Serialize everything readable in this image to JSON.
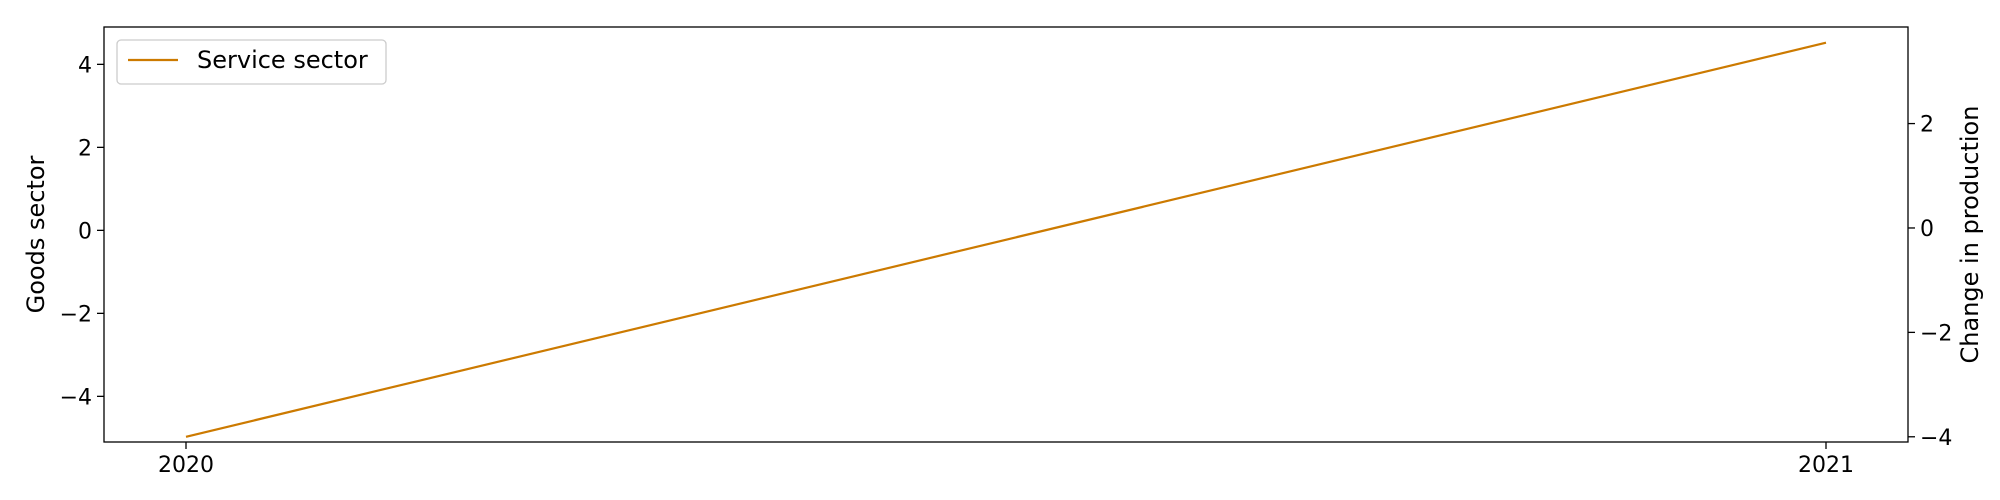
{
  "chart_data": {
    "type": "line",
    "x_categories": [
      "2020",
      "2021"
    ],
    "series": [
      {
        "name": "Service sector",
        "axis": "right",
        "x": [
          "2020",
          "2021"
        ],
        "values": [
          -4.0,
          3.55
        ]
      }
    ],
    "y_left": {
      "label": "Goods sector",
      "lim": [
        -5.1,
        4.9
      ],
      "ticks": [
        -4,
        -2,
        0,
        2,
        4
      ],
      "tick_labels": [
        "−4",
        "−2",
        "0",
        "2",
        "4"
      ]
    },
    "y_right": {
      "label": "Change in production",
      "lim": [
        -4.1,
        3.85
      ],
      "ticks": [
        -4,
        -2,
        0,
        2
      ],
      "tick_labels": [
        "−4",
        "−2",
        "0",
        "2"
      ]
    },
    "x_lim": [
      -0.05,
      1.05
    ],
    "grid": false,
    "legend": {
      "placement": "upper-left",
      "entries": [
        "Service sector"
      ]
    },
    "colors": {
      "service_sector": "#cc7a00",
      "axes": "#000000"
    }
  }
}
